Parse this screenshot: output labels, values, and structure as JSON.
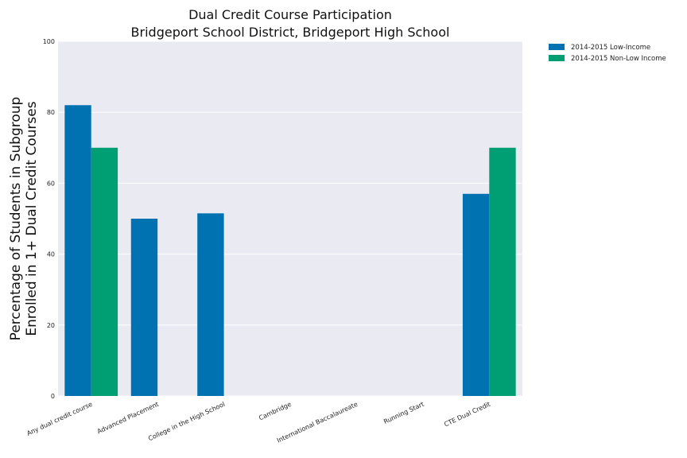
{
  "chart_data": {
    "type": "bar",
    "title_line1": "Dual Credit Course Participation",
    "title_line2": "Bridgeport School District, Bridgeport High School",
    "ylabel_line1": "Percentage of Students in Subgroup",
    "ylabel_line2": "Enrolled in 1+ Dual Credit Courses",
    "xlabel": "",
    "ylim": [
      0,
      100
    ],
    "yticks": [
      "0",
      "20",
      "40",
      "60",
      "80",
      "100"
    ],
    "grid": true,
    "legend_position": "outside-top-right",
    "categories": [
      "Any dual credit course",
      "Advanced Placement",
      "College in the High School",
      "Cambridge",
      "International Baccalaureate",
      "Running Start",
      "CTE Dual Credit"
    ],
    "series": [
      {
        "name": "2014-2015 Low-Income",
        "color": "#0072b2",
        "values": [
          82,
          50,
          51.5,
          null,
          null,
          null,
          57
        ]
      },
      {
        "name": "2014-2015 Non-Low Income",
        "color": "#009e73",
        "values": [
          70,
          null,
          null,
          null,
          null,
          null,
          70
        ]
      }
    ],
    "plot_background": "#e9eaf2"
  }
}
